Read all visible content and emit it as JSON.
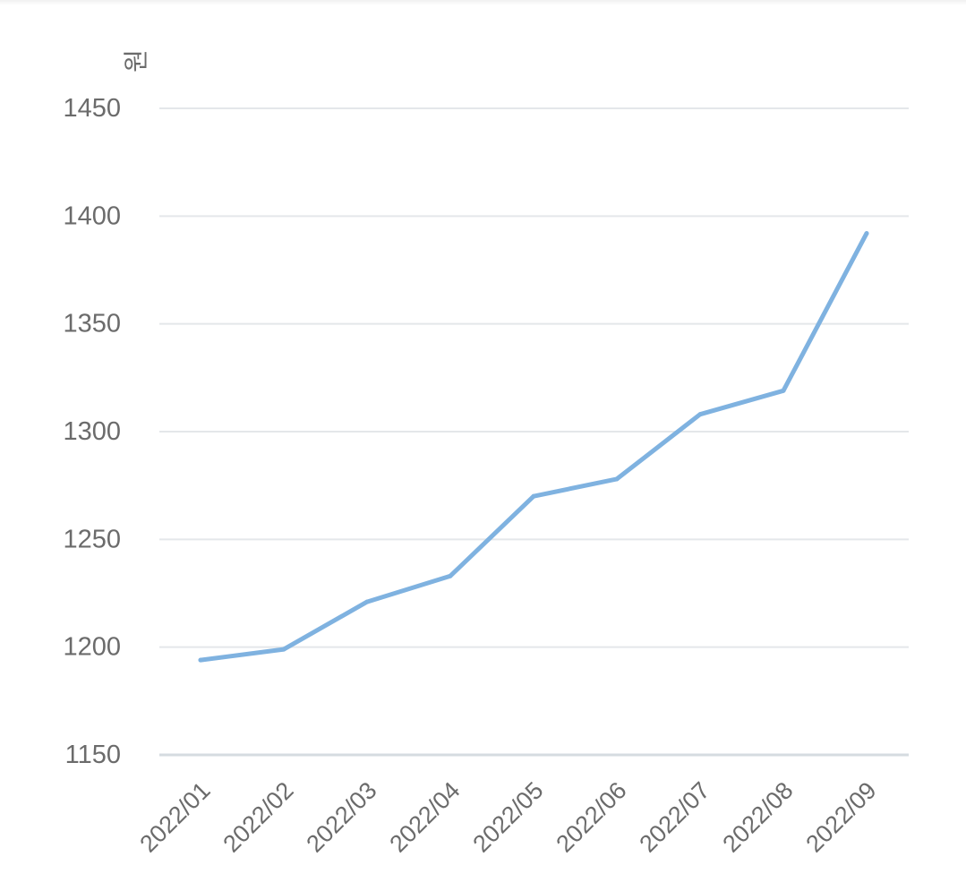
{
  "chart_data": {
    "type": "line",
    "ylabel": "원",
    "categories": [
      "2022/01",
      "2022/02",
      "2022/03",
      "2022/04",
      "2022/05",
      "2022/06",
      "2022/07",
      "2022/08",
      "2022/09"
    ],
    "series": [
      {
        "values": [
          1194,
          1199,
          1221,
          1233,
          1270,
          1278,
          1308,
          1319,
          1392
        ]
      }
    ],
    "yticks": [
      "1150",
      "1200",
      "1250",
      "1300",
      "1350",
      "1400",
      "1450"
    ],
    "ylim": [
      1150,
      1450
    ],
    "grid": true,
    "legend": "none",
    "line_color": "#7fb2e0",
    "grid_color": "#e4e7ea",
    "axis_color": "#d5dbe0"
  }
}
